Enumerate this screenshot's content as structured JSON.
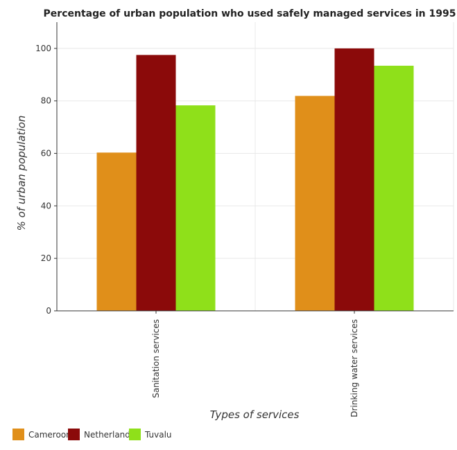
{
  "chart_data": {
    "type": "bar",
    "title": "Percentage of urban population who used safely managed services in 1995",
    "xlabel": "Types of services",
    "ylabel": "% of urban population",
    "categories": [
      "Sanitation services",
      "Drinking water services"
    ],
    "series": [
      {
        "name": "Cameroon",
        "color": "#e08f1a",
        "values": [
          60.3,
          81.9
        ]
      },
      {
        "name": "Netherlands",
        "color": "#8b0a0a",
        "values": [
          97.5,
          100
        ]
      },
      {
        "name": "Tuvalu",
        "color": "#8fe01a",
        "values": [
          78.3,
          93.4
        ]
      }
    ],
    "ylim": [
      0,
      110
    ],
    "yticks": [
      0,
      20,
      40,
      60,
      80,
      100
    ],
    "grid": true,
    "legend": "bottom-left"
  }
}
